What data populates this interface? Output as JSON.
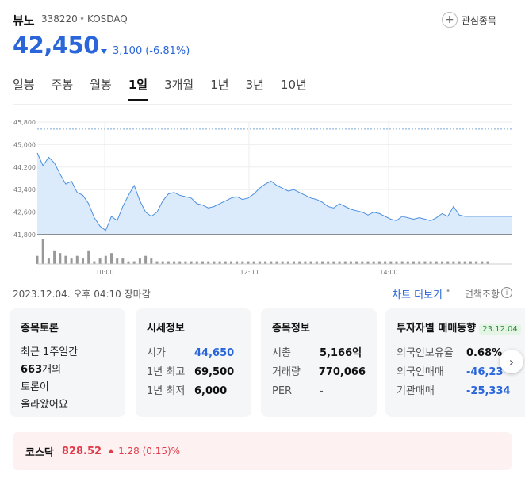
{
  "stock": {
    "name": "뷰노",
    "code": "338220",
    "dot": "•",
    "market": "KOSDAQ",
    "price": "42,450",
    "change": "3,100",
    "change_pct": "(-6.81%)",
    "fav_label": "관심종목",
    "fav_icon": "plus-icon"
  },
  "tabs": [
    {
      "label": "일봉"
    },
    {
      "label": "주봉"
    },
    {
      "label": "월봉"
    },
    {
      "label": "1일",
      "active": true
    },
    {
      "label": "3개월"
    },
    {
      "label": "1년"
    },
    {
      "label": "3년"
    },
    {
      "label": "10년"
    }
  ],
  "chart_data": {
    "type": "area",
    "title": "",
    "xlabel": "",
    "ylabel": "",
    "x_ticks": [
      "10:00",
      "12:00",
      "14:00"
    ],
    "y_ticks": [
      "45,800",
      "45,000",
      "44,200",
      "43,400",
      "42,600",
      "41,800"
    ],
    "ylim": [
      41800,
      45800
    ],
    "reference_value": 45550,
    "series": [
      {
        "values": [
          44700,
          44250,
          44550,
          44350,
          43950,
          43600,
          43700,
          43300,
          43200,
          42900,
          42400,
          42100,
          41950,
          42450,
          42300,
          42800,
          43200,
          43550,
          43000,
          42600,
          42450,
          42600,
          43000,
          43250,
          43300,
          43200,
          43150,
          43100,
          42900,
          42850,
          42750,
          42800,
          42900,
          43000,
          43100,
          43150,
          43050,
          43100,
          43250,
          43450,
          43600,
          43700,
          43550,
          43450,
          43350,
          43400,
          43300,
          43200,
          43100,
          43050,
          42950,
          42800,
          42750,
          42900,
          42800,
          42700,
          42650,
          42600,
          42500,
          42600,
          42550,
          42450,
          42350,
          42300,
          42450,
          42400,
          42350,
          42400,
          42350,
          42300,
          42400,
          42550,
          42450,
          42800,
          42500,
          42450,
          42450,
          42450,
          42450,
          42450
        ]
      }
    ],
    "volume": [
      3,
      9,
      2,
      5,
      4,
      3,
      2,
      3,
      2,
      5,
      1,
      2,
      3,
      4,
      2,
      2,
      1,
      1,
      2,
      3,
      2,
      1,
      1,
      1,
      1,
      1,
      1,
      1,
      1,
      1,
      1,
      1,
      1,
      1,
      1,
      1,
      1,
      1,
      1,
      1,
      1,
      1,
      1,
      1,
      1,
      1,
      1,
      1,
      1,
      1,
      1,
      1,
      1,
      1,
      1,
      1,
      1,
      1,
      1,
      1,
      1,
      1,
      1,
      1,
      1,
      1,
      1,
      1,
      1,
      1,
      1,
      1,
      1,
      1,
      1,
      1,
      1,
      1,
      1,
      1
    ],
    "grid": true,
    "fill_color": "#dcebfb",
    "line_color": "#4a8fe0",
    "ref_color": "#7aa6d8"
  },
  "status": {
    "date": "2023.12.04. 오후 04:10 장마감",
    "more": "차트 더보기",
    "dot": "•",
    "disclaimer": "면책조항",
    "info_icon": "i"
  },
  "cards": {
    "discussion": {
      "title": "종목토론",
      "lines": [
        "최근 1주일간",
        "663",
        "개의",
        "토론이",
        "올라왔어요"
      ]
    },
    "quote": {
      "title": "시세정보",
      "rows": [
        {
          "k": "시가",
          "v": "44,650"
        },
        {
          "k": "1년 최고",
          "v": "69,500"
        },
        {
          "k": "1년 최저",
          "v": "6,000"
        }
      ]
    },
    "stockinfo": {
      "title": "종목정보",
      "rows": [
        {
          "k": "시총",
          "v": "5,166억"
        },
        {
          "k": "거래량",
          "v": "770,066"
        },
        {
          "k": "PER",
          "v": "-"
        }
      ]
    },
    "investor": {
      "title": "투자자별 매매동향",
      "badge": "23.12.04",
      "rows": [
        {
          "k": "외국인보유율",
          "v": "0.68%"
        },
        {
          "k": "외국인매매",
          "v": "-46,23"
        },
        {
          "k": "기관매매",
          "v": "-25,334"
        }
      ]
    },
    "next_icon": "›"
  },
  "kosdaq": {
    "name": "코스닥",
    "value": "828.52",
    "change": "1.28 (0.15)%"
  },
  "colors": {
    "blue": "#2a66d9",
    "red": "#e03c4a"
  }
}
